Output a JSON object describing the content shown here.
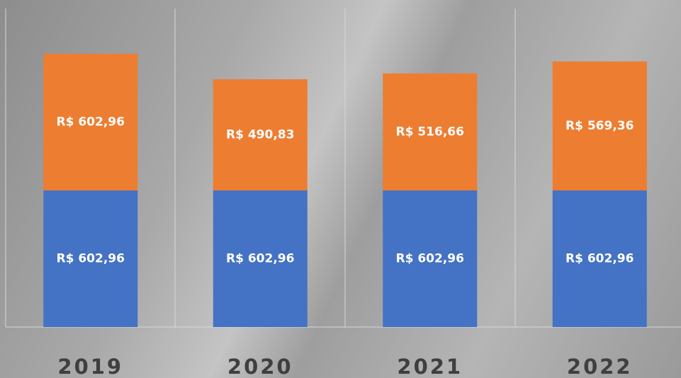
{
  "chart_data": {
    "type": "stacked_bar",
    "categories": [
      "2019",
      "2020",
      "2021",
      "2022"
    ],
    "series": [
      {
        "color": "#4472c4",
        "values": [
          602.96,
          602.96,
          602.96,
          602.96
        ],
        "value_labels": [
          "R$ 602,96",
          "R$ 602,96",
          "R$ 602,96",
          "R$ 602,96"
        ]
      },
      {
        "color": "#ed7d31",
        "values": [
          602.96,
          490.83,
          516.66,
          569.36
        ],
        "value_labels": [
          "R$ 602,96",
          "R$ 490,83",
          "R$ 516,66",
          "R$ 569,36"
        ]
      }
    ]
  }
}
